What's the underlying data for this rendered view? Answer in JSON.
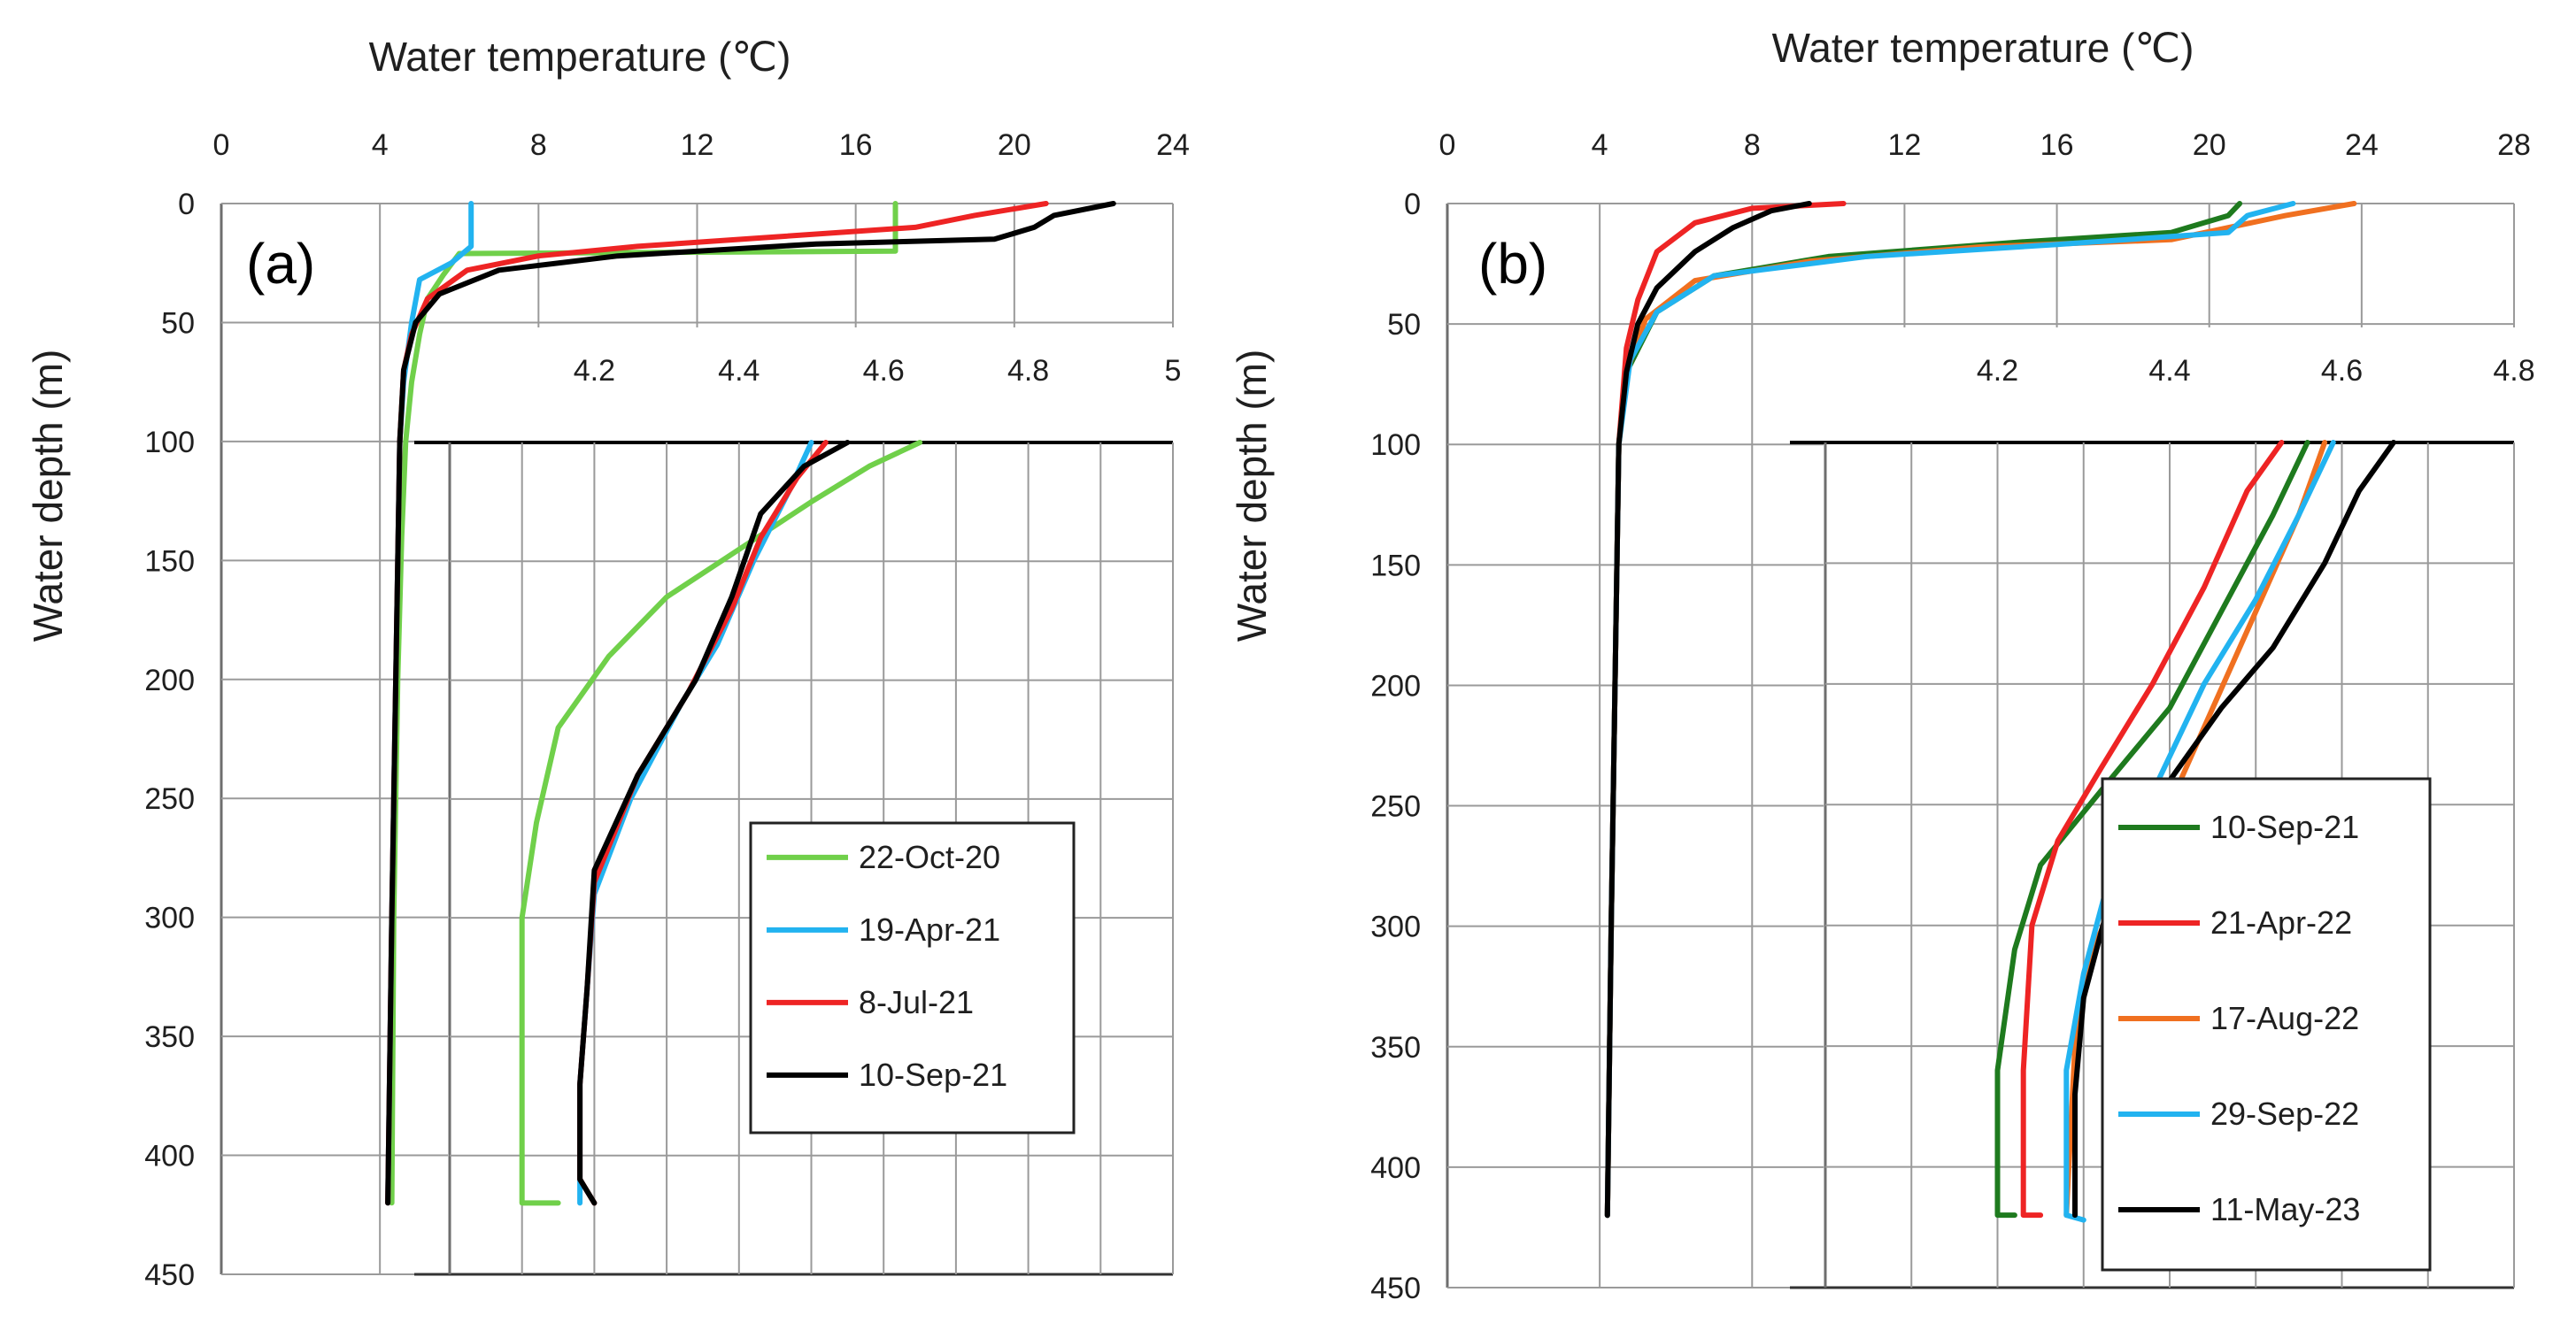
{
  "chart_data": [
    {
      "panel": "(a)",
      "type": "line",
      "xlabel": "Water temperature (℃)",
      "ylabel": "Water depth (m)",
      "xlim": [
        0,
        24
      ],
      "ylim": [
        450,
        0
      ],
      "xticks": [
        "0",
        "4",
        "8",
        "12",
        "16",
        "20",
        "24"
      ],
      "yticks": [
        "0",
        "50",
        "100",
        "150",
        "200",
        "250",
        "300",
        "350",
        "400",
        "450"
      ],
      "inset": {
        "xlim": [
          4.0,
          5.0
        ],
        "ylim": [
          450,
          100
        ],
        "xticks": [
          "4.2",
          "4.4",
          "4.6",
          "4.8",
          "5"
        ]
      },
      "series": [
        {
          "name": "22-Oct-20",
          "color": "#70d04a",
          "points": [
            [
              17.0,
              0
            ],
            [
              17.0,
              20
            ],
            [
              6.0,
              21
            ],
            [
              5.6,
              30
            ],
            [
              5.2,
              40
            ],
            [
              5.0,
              55
            ],
            [
              4.8,
              75
            ],
            [
              4.65,
              100
            ],
            [
              4.55,
              140
            ],
            [
              4.45,
              200
            ],
            [
              4.35,
              300
            ],
            [
              4.3,
              420
            ]
          ],
          "inset_points": [
            [
              4.65,
              100
            ],
            [
              4.58,
              110
            ],
            [
              4.5,
              125
            ],
            [
              4.4,
              145
            ],
            [
              4.3,
              165
            ],
            [
              4.22,
              190
            ],
            [
              4.15,
              220
            ],
            [
              4.12,
              260
            ],
            [
              4.1,
              300
            ],
            [
              4.1,
              360
            ],
            [
              4.1,
              420
            ],
            [
              4.15,
              420
            ]
          ]
        },
        {
          "name": "19-Apr-21",
          "color": "#22b3f0",
          "points": [
            [
              6.3,
              0
            ],
            [
              6.3,
              18
            ],
            [
              5.8,
              25
            ],
            [
              5.0,
              32
            ],
            [
              4.8,
              50
            ],
            [
              4.6,
              75
            ],
            [
              4.5,
              100
            ],
            [
              4.4,
              200
            ],
            [
              4.3,
              300
            ],
            [
              4.2,
              420
            ]
          ],
          "inset_points": [
            [
              4.5,
              100
            ],
            [
              4.47,
              120
            ],
            [
              4.42,
              150
            ],
            [
              4.37,
              185
            ],
            [
              4.32,
              210
            ],
            [
              4.25,
              250
            ],
            [
              4.2,
              290
            ],
            [
              4.19,
              330
            ],
            [
              4.18,
              370
            ],
            [
              4.18,
              420
            ]
          ]
        },
        {
          "name": "8-Jul-21",
          "color": "#ee2424",
          "points": [
            [
              20.8,
              0
            ],
            [
              19.0,
              5
            ],
            [
              17.5,
              10
            ],
            [
              14.0,
              14
            ],
            [
              10.5,
              18
            ],
            [
              8.0,
              22
            ],
            [
              6.2,
              28
            ],
            [
              5.2,
              40
            ],
            [
              4.8,
              55
            ],
            [
              4.6,
              70
            ],
            [
              4.5,
              100
            ],
            [
              4.4,
              200
            ],
            [
              4.3,
              300
            ],
            [
              4.2,
              420
            ]
          ],
          "inset_points": [
            [
              4.52,
              100
            ],
            [
              4.48,
              115
            ],
            [
              4.43,
              140
            ],
            [
              4.39,
              170
            ],
            [
              4.33,
              205
            ],
            [
              4.26,
              240
            ],
            [
              4.2,
              285
            ],
            [
              4.19,
              330
            ],
            [
              4.18,
              370
            ],
            [
              4.18,
              410
            ],
            [
              4.2,
              420
            ]
          ]
        },
        {
          "name": "10-Sep-21",
          "color": "#000000",
          "points": [
            [
              22.5,
              0
            ],
            [
              21.0,
              5
            ],
            [
              20.5,
              10
            ],
            [
              19.5,
              15
            ],
            [
              15.0,
              17
            ],
            [
              10.0,
              22
            ],
            [
              7.0,
              28
            ],
            [
              5.5,
              38
            ],
            [
              4.9,
              50
            ],
            [
              4.6,
              70
            ],
            [
              4.5,
              100
            ],
            [
              4.4,
              200
            ],
            [
              4.3,
              300
            ],
            [
              4.2,
              420
            ]
          ],
          "inset_points": [
            [
              4.55,
              100
            ],
            [
              4.49,
              110
            ],
            [
              4.43,
              130
            ],
            [
              4.39,
              165
            ],
            [
              4.34,
              200
            ],
            [
              4.26,
              240
            ],
            [
              4.2,
              280
            ],
            [
              4.19,
              330
            ],
            [
              4.18,
              370
            ],
            [
              4.18,
              410
            ],
            [
              4.2,
              420
            ]
          ]
        }
      ]
    },
    {
      "panel": "(b)",
      "type": "line",
      "xlabel": "Water temperature (℃)",
      "ylabel": "Water depth (m)",
      "xlim": [
        0,
        28
      ],
      "ylim": [
        450,
        0
      ],
      "xticks": [
        "0",
        "4",
        "8",
        "12",
        "16",
        "20",
        "24",
        "28"
      ],
      "yticks": [
        "0",
        "50",
        "100",
        "150",
        "200",
        "250",
        "300",
        "350",
        "400",
        "450"
      ],
      "inset": {
        "xlim": [
          4.0,
          4.8
        ],
        "ylim": [
          450,
          100
        ],
        "xticks": [
          "4.2",
          "4.4",
          "4.6",
          "4.8"
        ]
      },
      "series": [
        {
          "name": "10-Sep-21",
          "color": "#1e7a1e",
          "points": [
            [
              20.8,
              0
            ],
            [
              20.5,
              5
            ],
            [
              19.0,
              12
            ],
            [
              15.0,
              16
            ],
            [
              10.0,
              22
            ],
            [
              7.0,
              30
            ],
            [
              5.5,
              45
            ],
            [
              4.7,
              70
            ],
            [
              4.5,
              100
            ],
            [
              4.4,
              200
            ],
            [
              4.3,
              300
            ],
            [
              4.2,
              420
            ]
          ],
          "inset_points": [
            [
              4.56,
              100
            ],
            [
              4.52,
              130
            ],
            [
              4.46,
              170
            ],
            [
              4.4,
              210
            ],
            [
              4.33,
              240
            ],
            [
              4.25,
              275
            ],
            [
              4.22,
              310
            ],
            [
              4.2,
              360
            ],
            [
              4.2,
              420
            ],
            [
              4.22,
              420
            ]
          ]
        },
        {
          "name": "21-Apr-22",
          "color": "#ee2424",
          "points": [
            [
              10.4,
              0
            ],
            [
              8.0,
              2
            ],
            [
              6.5,
              8
            ],
            [
              5.5,
              20
            ],
            [
              5.0,
              40
            ],
            [
              4.7,
              60
            ],
            [
              4.5,
              100
            ],
            [
              4.4,
              200
            ],
            [
              4.3,
              300
            ],
            [
              4.2,
              420
            ]
          ],
          "inset_points": [
            [
              4.53,
              100
            ],
            [
              4.49,
              120
            ],
            [
              4.44,
              160
            ],
            [
              4.38,
              200
            ],
            [
              4.32,
              235
            ],
            [
              4.27,
              265
            ],
            [
              4.24,
              300
            ],
            [
              4.23,
              360
            ],
            [
              4.23,
              420
            ],
            [
              4.25,
              420
            ]
          ]
        },
        {
          "name": "17-Aug-22",
          "color": "#f07020",
          "points": [
            [
              23.8,
              0
            ],
            [
              22.0,
              5
            ],
            [
              20.5,
              10
            ],
            [
              19.0,
              15
            ],
            [
              14.0,
              18
            ],
            [
              9.5,
              24
            ],
            [
              6.5,
              32
            ],
            [
              5.2,
              48
            ],
            [
              4.7,
              70
            ],
            [
              4.5,
              100
            ],
            [
              4.4,
              200
            ],
            [
              4.3,
              300
            ],
            [
              4.2,
              420
            ]
          ],
          "inset_points": [
            [
              4.58,
              100
            ],
            [
              4.55,
              130
            ],
            [
              4.5,
              170
            ],
            [
              4.45,
              210
            ],
            [
              4.4,
              250
            ],
            [
              4.35,
              280
            ],
            [
              4.31,
              310
            ],
            [
              4.29,
              350
            ],
            [
              4.28,
              420
            ]
          ]
        },
        {
          "name": "29-Sep-22",
          "color": "#22b3f0",
          "points": [
            [
              22.2,
              0
            ],
            [
              21.0,
              5
            ],
            [
              20.5,
              12
            ],
            [
              16.0,
              17
            ],
            [
              11.0,
              22
            ],
            [
              7.0,
              30
            ],
            [
              5.5,
              45
            ],
            [
              4.8,
              65
            ],
            [
              4.5,
              100
            ],
            [
              4.4,
              200
            ],
            [
              4.3,
              300
            ],
            [
              4.2,
              420
            ]
          ],
          "inset_points": [
            [
              4.59,
              100
            ],
            [
              4.55,
              130
            ],
            [
              4.5,
              165
            ],
            [
              4.44,
              200
            ],
            [
              4.38,
              245
            ],
            [
              4.33,
              280
            ],
            [
              4.3,
              320
            ],
            [
              4.28,
              360
            ],
            [
              4.28,
              420
            ],
            [
              4.3,
              422
            ]
          ]
        },
        {
          "name": "11-May-23",
          "color": "#000000",
          "points": [
            [
              9.5,
              0
            ],
            [
              8.5,
              3
            ],
            [
              7.5,
              10
            ],
            [
              6.5,
              20
            ],
            [
              5.5,
              35
            ],
            [
              5.0,
              50
            ],
            [
              4.7,
              70
            ],
            [
              4.5,
              100
            ],
            [
              4.4,
              200
            ],
            [
              4.3,
              300
            ],
            [
              4.2,
              420
            ]
          ],
          "inset_points": [
            [
              4.66,
              100
            ],
            [
              4.62,
              120
            ],
            [
              4.58,
              150
            ],
            [
              4.52,
              185
            ],
            [
              4.46,
              210
            ],
            [
              4.38,
              250
            ],
            [
              4.33,
              290
            ],
            [
              4.3,
              330
            ],
            [
              4.29,
              370
            ],
            [
              4.29,
              420
            ]
          ]
        }
      ]
    }
  ]
}
